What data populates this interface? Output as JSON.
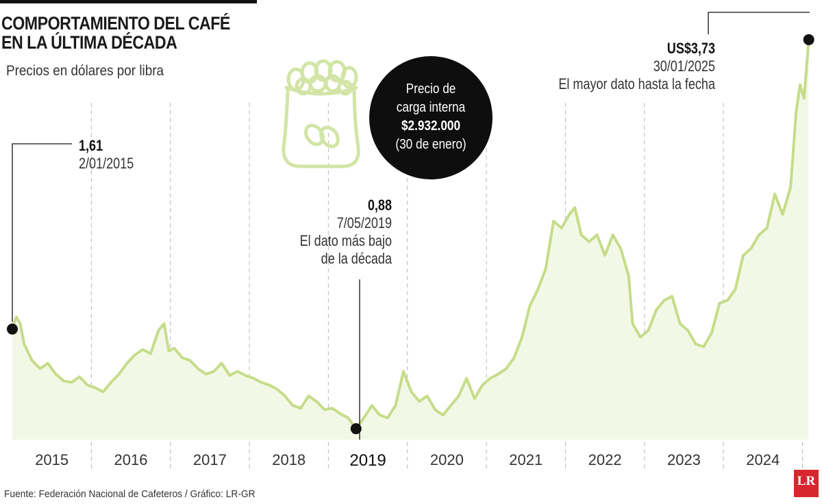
{
  "header": {
    "title_line1": "COMPORTAMIENTO DEL CAFÉ",
    "title_line2": "EN LA ÚLTIMA DÉCADA",
    "subtitle": "Precios en dólares por libra"
  },
  "callout_circle": {
    "line1": "Precio de",
    "line2": "carga interna",
    "value": "$2.932.000",
    "date": "(30 de enero)"
  },
  "annotations": {
    "start": {
      "value": "1,61",
      "date": "2/01/2015"
    },
    "low": {
      "value": "0,88",
      "date": "7/05/2019",
      "note_line1": "El dato más bajo",
      "note_line2": "de la década"
    },
    "high": {
      "value": "US$3,73",
      "date": "30/01/2025",
      "note": "El mayor dato hasta la fecha"
    }
  },
  "footer": {
    "source": "Fuente: Federación Nacional de Cafeteros  / Gráfico: LR-GR",
    "logo": "LR"
  },
  "colors": {
    "line": "#c6dc8a",
    "area": "#f3f8e6",
    "icon": "#d2e5a6",
    "marker": "#111111",
    "logo": "#d8262f"
  },
  "icon": "coffee-sack-icon",
  "chart_data": {
    "type": "area",
    "title": "COMPORTAMIENTO DEL CAFÉ EN LA ÚLTIMA DÉCADA",
    "subtitle": "Precios en dólares por libra",
    "xlabel": "",
    "ylabel": "",
    "x_tick_labels": [
      "2015",
      "2016",
      "2017",
      "2018",
      "2019",
      "2020",
      "2021",
      "2022",
      "2023",
      "2024"
    ],
    "highlighted_tick": "2019",
    "xlim": [
      2015.0,
      2025.1
    ],
    "ylim": [
      0.8,
      3.85
    ],
    "grid": "vertical dashed lines at year boundaries",
    "series": [
      {
        "values": [
          [
            2015.0,
            1.61
          ],
          [
            2015.05,
            1.7
          ],
          [
            2015.1,
            1.65
          ],
          [
            2015.15,
            1.5
          ],
          [
            2015.25,
            1.38
          ],
          [
            2015.35,
            1.32
          ],
          [
            2015.45,
            1.36
          ],
          [
            2015.55,
            1.28
          ],
          [
            2015.65,
            1.23
          ],
          [
            2015.75,
            1.22
          ],
          [
            2015.85,
            1.26
          ],
          [
            2015.95,
            1.2
          ],
          [
            2016.05,
            1.18
          ],
          [
            2016.15,
            1.15
          ],
          [
            2016.25,
            1.22
          ],
          [
            2016.35,
            1.28
          ],
          [
            2016.45,
            1.36
          ],
          [
            2016.55,
            1.42
          ],
          [
            2016.65,
            1.46
          ],
          [
            2016.75,
            1.43
          ],
          [
            2016.85,
            1.6
          ],
          [
            2016.92,
            1.65
          ],
          [
            2016.98,
            1.45
          ],
          [
            2017.05,
            1.47
          ],
          [
            2017.15,
            1.4
          ],
          [
            2017.25,
            1.38
          ],
          [
            2017.35,
            1.32
          ],
          [
            2017.45,
            1.28
          ],
          [
            2017.55,
            1.3
          ],
          [
            2017.65,
            1.36
          ],
          [
            2017.75,
            1.27
          ],
          [
            2017.85,
            1.3
          ],
          [
            2017.95,
            1.27
          ],
          [
            2018.05,
            1.25
          ],
          [
            2018.15,
            1.22
          ],
          [
            2018.25,
            1.2
          ],
          [
            2018.35,
            1.17
          ],
          [
            2018.45,
            1.12
          ],
          [
            2018.55,
            1.05
          ],
          [
            2018.65,
            1.03
          ],
          [
            2018.75,
            1.12
          ],
          [
            2018.85,
            1.08
          ],
          [
            2018.95,
            1.02
          ],
          [
            2019.05,
            1.03
          ],
          [
            2019.15,
            0.99
          ],
          [
            2019.25,
            0.96
          ],
          [
            2019.35,
            0.88
          ],
          [
            2019.45,
            0.96
          ],
          [
            2019.55,
            1.05
          ],
          [
            2019.65,
            0.98
          ],
          [
            2019.75,
            0.96
          ],
          [
            2019.85,
            1.05
          ],
          [
            2019.95,
            1.3
          ],
          [
            2020.05,
            1.15
          ],
          [
            2020.15,
            1.08
          ],
          [
            2020.25,
            1.12
          ],
          [
            2020.35,
            1.02
          ],
          [
            2020.45,
            0.98
          ],
          [
            2020.55,
            1.05
          ],
          [
            2020.65,
            1.12
          ],
          [
            2020.75,
            1.25
          ],
          [
            2020.85,
            1.1
          ],
          [
            2020.95,
            1.2
          ],
          [
            2021.05,
            1.25
          ],
          [
            2021.15,
            1.28
          ],
          [
            2021.25,
            1.32
          ],
          [
            2021.35,
            1.4
          ],
          [
            2021.45,
            1.55
          ],
          [
            2021.55,
            1.78
          ],
          [
            2021.65,
            1.9
          ],
          [
            2021.75,
            2.05
          ],
          [
            2021.85,
            2.4
          ],
          [
            2021.95,
            2.35
          ],
          [
            2022.05,
            2.45
          ],
          [
            2022.12,
            2.5
          ],
          [
            2022.2,
            2.3
          ],
          [
            2022.3,
            2.25
          ],
          [
            2022.4,
            2.3
          ],
          [
            2022.5,
            2.15
          ],
          [
            2022.6,
            2.3
          ],
          [
            2022.7,
            2.2
          ],
          [
            2022.8,
            2.0
          ],
          [
            2022.85,
            1.65
          ],
          [
            2022.95,
            1.55
          ],
          [
            2023.05,
            1.6
          ],
          [
            2023.15,
            1.75
          ],
          [
            2023.25,
            1.82
          ],
          [
            2023.35,
            1.85
          ],
          [
            2023.45,
            1.65
          ],
          [
            2023.55,
            1.6
          ],
          [
            2023.65,
            1.5
          ],
          [
            2023.75,
            1.48
          ],
          [
            2023.85,
            1.58
          ],
          [
            2023.95,
            1.8
          ],
          [
            2024.05,
            1.82
          ],
          [
            2024.15,
            1.9
          ],
          [
            2024.25,
            2.15
          ],
          [
            2024.35,
            2.2
          ],
          [
            2024.45,
            2.3
          ],
          [
            2024.55,
            2.35
          ],
          [
            2024.65,
            2.6
          ],
          [
            2024.75,
            2.45
          ],
          [
            2024.85,
            2.65
          ],
          [
            2024.92,
            3.2
          ],
          [
            2024.97,
            3.4
          ],
          [
            2025.02,
            3.3
          ],
          [
            2025.08,
            3.73
          ]
        ]
      }
    ],
    "annotated_points": [
      {
        "x": 2015.0,
        "y": 1.61,
        "label": "1,61",
        "date": "2/01/2015"
      },
      {
        "x": 2019.35,
        "y": 0.88,
        "label": "0,88",
        "date": "7/05/2019"
      },
      {
        "x": 2025.08,
        "y": 3.73,
        "label": "US$3,73",
        "date": "30/01/2025"
      }
    ]
  }
}
